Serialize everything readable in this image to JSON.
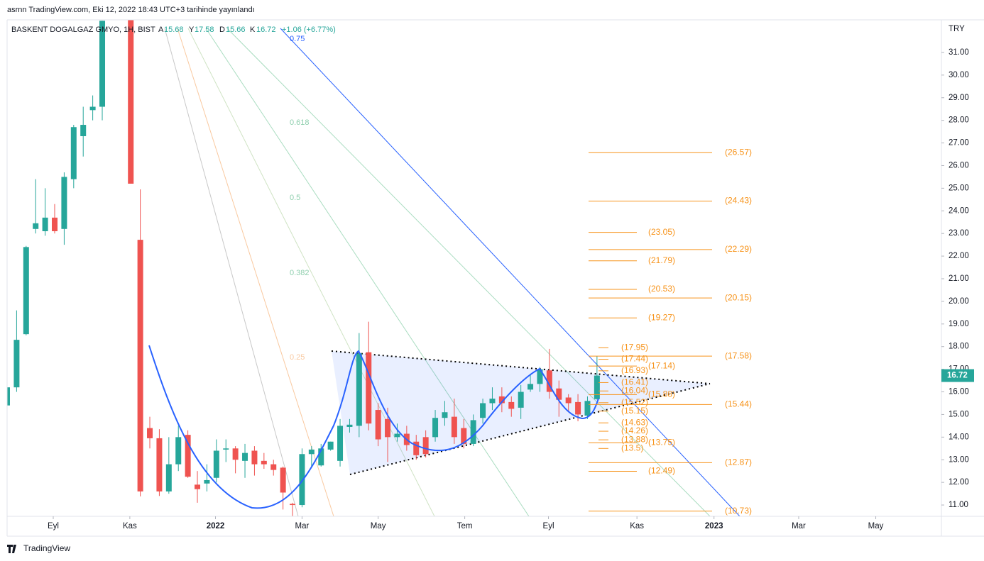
{
  "header": {
    "published": "asrnn TradingView.com, Eki 12, 2022 18:43 UTC+3 tarihinde yayınlandı",
    "symbol": "BASKENT DOGALGAZ GMYO, 1H, BIST",
    "open_key": "A",
    "open": "15.68",
    "high_key": "Y",
    "high": "17.58",
    "low_key": "D",
    "low": "15.66",
    "close_key": "K",
    "close": "16.72",
    "change": "+1.06 (+6.77%)"
  },
  "footer": {
    "brand": "TradingView"
  },
  "chart_data": {
    "type": "candlestick",
    "currency": "TRY",
    "last_price": {
      "value": 16.72,
      "label": "16.72"
    },
    "up_color": "#26a69a",
    "down_color": "#ef5350",
    "x": [
      0,
      1,
      2,
      3,
      4,
      5,
      6,
      7,
      8,
      9,
      10,
      13,
      14,
      15,
      16,
      17,
      18,
      19,
      20,
      21,
      22,
      23,
      24,
      25,
      26,
      27,
      28,
      29,
      30,
      31,
      32,
      33,
      34,
      35,
      36,
      37,
      38,
      39,
      40,
      41,
      42,
      43,
      44,
      45,
      46,
      47,
      48,
      49,
      50,
      51,
      52,
      53,
      54,
      55,
      56,
      57,
      58,
      59,
      60,
      61,
      62
    ],
    "open": [
      15.4,
      16.2,
      18.55,
      23.2,
      23.1,
      23.7,
      23.2,
      25.4,
      27.3,
      28.45,
      28.6,
      33.0,
      22.72,
      14.4,
      13.95,
      11.6,
      12.8,
      14.1,
      11.9,
      11.95,
      12.2,
      13.45,
      13.5,
      12.95,
      13.4,
      12.95,
      12.8,
      12.65,
      11.05,
      11.0,
      13.25,
      12.75,
      13.45,
      12.95,
      14.45,
      14.5,
      17.75,
      15.2,
      14.8,
      14.0,
      14.15,
      13.8,
      14.0,
      14.0,
      14.85,
      14.9,
      14.4,
      13.7,
      14.85,
      15.5,
      15.8,
      15.55,
      15.3,
      16.1,
      16.35,
      16.95,
      16.15,
      15.75,
      15.55,
      14.95,
      15.68
    ],
    "high": [
      16.5,
      19.6,
      22.45,
      25.4,
      25.0,
      24.3,
      25.7,
      27.8,
      28.6,
      29.1,
      32.4,
      33.5,
      24.95,
      14.9,
      14.35,
      14.0,
      14.5,
      14.3,
      12.5,
      12.8,
      13.9,
      13.9,
      13.6,
      13.7,
      13.6,
      13.3,
      13.0,
      12.7,
      11.1,
      13.5,
      13.6,
      13.7,
      13.8,
      14.8,
      14.8,
      18.6,
      19.1,
      15.5,
      15.3,
      14.6,
      14.5,
      14.1,
      14.3,
      15.2,
      15.6,
      15.7,
      14.8,
      15.0,
      15.7,
      16.2,
      16.2,
      15.8,
      16.3,
      16.8,
      17.1,
      17.9,
      16.5,
      15.9,
      15.9,
      15.8,
      17.58
    ],
    "low": [
      15.3,
      16.0,
      18.5,
      23.0,
      22.9,
      23.0,
      22.5,
      25.0,
      26.4,
      28.0,
      28.0,
      25.2,
      11.38,
      13.5,
      11.4,
      11.5,
      12.5,
      12.2,
      11.1,
      11.6,
      12.0,
      12.9,
      12.4,
      12.2,
      12.3,
      12.6,
      12.3,
      10.8,
      10.5,
      10.9,
      12.7,
      12.7,
      13.4,
      12.7,
      14.2,
      14.0,
      14.3,
      13.6,
      12.9,
      13.8,
      13.4,
      13.0,
      13.1,
      13.8,
      14.5,
      13.7,
      13.5,
      13.6,
      14.6,
      15.2,
      15.1,
      14.9,
      14.8,
      16.0,
      16.0,
      15.7,
      14.9,
      15.1,
      14.7,
      14.8,
      15.66
    ],
    "close": [
      16.2,
      18.3,
      22.4,
      23.45,
      23.7,
      23.1,
      25.5,
      27.7,
      27.8,
      28.6,
      32.4,
      25.2,
      11.6,
      13.95,
      11.6,
      12.8,
      14.0,
      12.25,
      11.7,
      12.1,
      13.4,
      13.5,
      13.0,
      13.3,
      12.8,
      12.8,
      12.55,
      11.55,
      11.0,
      13.25,
      13.45,
      13.5,
      13.8,
      14.5,
      14.55,
      17.7,
      14.6,
      13.9,
      14.0,
      14.15,
      13.65,
      13.2,
      13.25,
      14.85,
      15.1,
      14.0,
      13.7,
      14.75,
      15.5,
      15.7,
      15.5,
      15.25,
      16.0,
      16.35,
      17.0,
      16.0,
      15.65,
      15.5,
      15.0,
      15.6,
      16.72
    ],
    "xlim": [
      0,
      98.2
    ],
    "ylim": [
      10.5,
      32.44
    ],
    "xticks": [
      {
        "value": 4.85,
        "label": "Eyl"
      },
      {
        "value": 12.9,
        "label": "Kas"
      },
      {
        "value": 21.9,
        "label": "2022"
      },
      {
        "value": 31.0,
        "label": "Mar"
      },
      {
        "value": 39.0,
        "label": "May"
      },
      {
        "value": 48.1,
        "label": "Tem"
      },
      {
        "value": 56.9,
        "label": "Eyl"
      },
      {
        "value": 66.2,
        "label": "Kas"
      },
      {
        "value": 74.3,
        "label": "2023"
      },
      {
        "value": 83.2,
        "label": "Mar"
      },
      {
        "value": 91.3,
        "label": "May"
      }
    ],
    "yticks": [
      {
        "value": 11,
        "label": "11.00"
      },
      {
        "value": 12,
        "label": "12.00"
      },
      {
        "value": 13,
        "label": "13.00"
      },
      {
        "value": 14,
        "label": "14.00"
      },
      {
        "value": 15,
        "label": "15.00"
      },
      {
        "value": 16,
        "label": "16.00"
      },
      {
        "value": 17,
        "label": "17.00"
      },
      {
        "value": 18,
        "label": "18.00"
      },
      {
        "value": 19,
        "label": "19.00"
      },
      {
        "value": 20,
        "label": "20.00"
      },
      {
        "value": 21,
        "label": "21.00"
      },
      {
        "value": 22,
        "label": "22.00"
      },
      {
        "value": 23,
        "label": "23.00"
      },
      {
        "value": 24,
        "label": "24.00"
      },
      {
        "value": 25,
        "label": "25.00"
      },
      {
        "value": 26,
        "label": "26.00"
      },
      {
        "value": 27,
        "label": "27.00"
      },
      {
        "value": 28,
        "label": "28.00"
      },
      {
        "value": 29,
        "label": "29.00"
      },
      {
        "value": 30,
        "label": "30.00"
      },
      {
        "value": 31,
        "label": "31.00"
      }
    ],
    "fib_fan_labels": [
      "0.75",
      "0.618",
      "0.5",
      "0.382",
      "0.25"
    ],
    "level_groups": [
      {
        "levels": [
          {
            "value": 26.57,
            "label": "(26.57)"
          },
          {
            "value": 24.43,
            "label": "(24.43)"
          },
          {
            "value": 22.29,
            "label": "(22.29)"
          },
          {
            "value": 20.15,
            "label": "(20.15)"
          },
          {
            "value": 17.58,
            "label": "(17.58)"
          },
          {
            "value": 15.44,
            "label": "(15.44)"
          },
          {
            "value": 12.87,
            "label": "(12.87)"
          },
          {
            "value": 10.73,
            "label": "(10.73)"
          }
        ]
      },
      {
        "levels": [
          {
            "value": 23.05,
            "label": "(23.05)"
          },
          {
            "value": 21.79,
            "label": "(21.79)"
          },
          {
            "value": 20.53,
            "label": "(20.53)"
          },
          {
            "value": 19.27,
            "label": "(19.27)"
          },
          {
            "value": 17.14,
            "label": "(17.14)"
          },
          {
            "value": 15.88,
            "label": "(15.88)"
          },
          {
            "value": 13.75,
            "label": "(13.75)"
          },
          {
            "value": 12.49,
            "label": "(12.49)"
          }
        ]
      },
      {
        "levels": [
          {
            "value": 17.95,
            "label": "(17.95)"
          },
          {
            "value": 17.44,
            "label": "(17.44)"
          },
          {
            "value": 16.93,
            "label": "(16.93)"
          },
          {
            "value": 16.41,
            "label": "(16.41)"
          },
          {
            "value": 16.04,
            "label": "(16.04)"
          },
          {
            "value": 15.52,
            "label": "(15.52)"
          },
          {
            "value": 15.15,
            "label": "(15.15)"
          },
          {
            "value": 14.63,
            "label": "(14.63)"
          },
          {
            "value": 14.26,
            "label": "(14.26)"
          },
          {
            "value": 13.88,
            "label": "(13.88)"
          },
          {
            "value": 13.5,
            "label": "(13.5)"
          }
        ]
      }
    ]
  }
}
